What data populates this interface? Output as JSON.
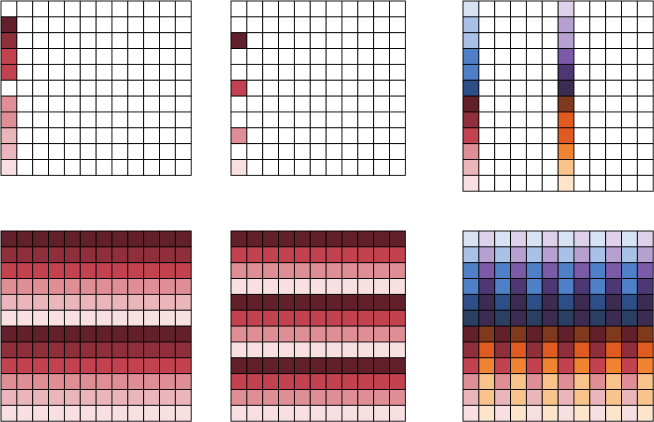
{
  "palettes": {
    "reds": [
      "#62212a",
      "#8f2f3b",
      "#c2434f",
      "#df8e95",
      "#eab6bb",
      "#f7dfe2"
    ],
    "blues": [
      "#d7e2f4",
      "#a9c1e6",
      "#4f7fc6",
      "#2c4f87",
      "#2b3f63"
    ],
    "purples": [
      "#ddd0ea",
      "#b6a0cf",
      "#7b5aa8",
      "#4d3874",
      "#3c2c52"
    ],
    "oranges": [
      "#7f3a1e",
      "#df5b22",
      "#f08433",
      "#f8c48c",
      "#fde5cb"
    ],
    "grid_line": "#000000",
    "empty_cell": "#ffffff"
  },
  "panels": [
    {
      "name": "panel-sparse-reds-every-row",
      "rows": 11,
      "cols": 12,
      "cells": [
        [
          1,
          0,
          "reds",
          0
        ],
        [
          2,
          0,
          "reds",
          1
        ],
        [
          3,
          0,
          "reds",
          2
        ],
        [
          4,
          0,
          "reds",
          2
        ],
        [
          6,
          0,
          "reds",
          3
        ],
        [
          7,
          0,
          "reds",
          3
        ],
        [
          8,
          0,
          "reds",
          4
        ],
        [
          9,
          0,
          "reds",
          4
        ],
        [
          10,
          0,
          "reds",
          5
        ]
      ]
    },
    {
      "name": "panel-sparse-reds-alternating",
      "rows": 11,
      "cols": 11,
      "cells": [
        [
          2,
          0,
          "reds",
          0
        ],
        [
          5,
          0,
          "reds",
          2
        ],
        [
          8,
          0,
          "reds",
          3
        ],
        [
          10,
          0,
          "reds",
          5
        ]
      ]
    },
    {
      "name": "panel-sparse-two-ramps",
      "rows": 12,
      "cols": 12,
      "cells": [
        [
          0,
          0,
          "blues",
          0
        ],
        [
          1,
          0,
          "blues",
          1
        ],
        [
          2,
          0,
          "blues",
          1
        ],
        [
          3,
          0,
          "blues",
          2
        ],
        [
          4,
          0,
          "blues",
          2
        ],
        [
          5,
          0,
          "blues",
          3
        ],
        [
          6,
          0,
          "reds",
          0
        ],
        [
          7,
          0,
          "reds",
          1
        ],
        [
          8,
          0,
          "reds",
          2
        ],
        [
          9,
          0,
          "reds",
          3
        ],
        [
          10,
          0,
          "reds",
          4
        ],
        [
          11,
          0,
          "reds",
          5
        ],
        [
          0,
          6,
          "purples",
          0
        ],
        [
          1,
          6,
          "purples",
          1
        ],
        [
          2,
          6,
          "purples",
          1
        ],
        [
          3,
          6,
          "purples",
          2
        ],
        [
          4,
          6,
          "purples",
          3
        ],
        [
          5,
          6,
          "purples",
          4
        ],
        [
          6,
          6,
          "oranges",
          0
        ],
        [
          7,
          6,
          "oranges",
          1
        ],
        [
          8,
          6,
          "oranges",
          1
        ],
        [
          9,
          6,
          "oranges",
          2
        ],
        [
          10,
          6,
          "oranges",
          3
        ],
        [
          11,
          6,
          "oranges",
          4
        ]
      ]
    },
    {
      "name": "panel-filled-reds-two-bands",
      "rows": 12,
      "cols": 12,
      "row_colors": [
        [
          "reds",
          0
        ],
        [
          "reds",
          1
        ],
        [
          "reds",
          2
        ],
        [
          "reds",
          3
        ],
        [
          "reds",
          4
        ],
        [
          "reds",
          5
        ],
        [
          "reds",
          0
        ],
        [
          "reds",
          1
        ],
        [
          "reds",
          2
        ],
        [
          "reds",
          3
        ],
        [
          "reds",
          4
        ],
        [
          "reds",
          5
        ]
      ]
    },
    {
      "name": "panel-filled-reds-three-bands",
      "rows": 12,
      "cols": 11,
      "row_colors": [
        [
          "reds",
          0
        ],
        [
          "reds",
          2
        ],
        [
          "reds",
          3
        ],
        [
          "reds",
          5
        ],
        [
          "reds",
          0
        ],
        [
          "reds",
          2
        ],
        [
          "reds",
          3
        ],
        [
          "reds",
          5
        ],
        [
          "reds",
          0
        ],
        [
          "reds",
          2
        ],
        [
          "reds",
          3
        ],
        [
          "reds",
          5
        ]
      ]
    },
    {
      "name": "panel-filled-two-ramps-interleaved",
      "rows": 12,
      "cols": 12,
      "row_pairs": [
        [
          [
            "blues",
            0
          ],
          [
            "purples",
            0
          ]
        ],
        [
          [
            "blues",
            1
          ],
          [
            "purples",
            1
          ]
        ],
        [
          [
            "blues",
            2
          ],
          [
            "purples",
            2
          ]
        ],
        [
          [
            "blues",
            2
          ],
          [
            "purples",
            3
          ]
        ],
        [
          [
            "blues",
            3
          ],
          [
            "purples",
            4
          ]
        ],
        [
          [
            "blues",
            4
          ],
          [
            "purples",
            4
          ]
        ],
        [
          [
            "reds",
            0
          ],
          [
            "oranges",
            0
          ]
        ],
        [
          [
            "reds",
            1
          ],
          [
            "oranges",
            1
          ]
        ],
        [
          [
            "reds",
            2
          ],
          [
            "oranges",
            2
          ]
        ],
        [
          [
            "reds",
            3
          ],
          [
            "oranges",
            3
          ]
        ],
        [
          [
            "reds",
            4
          ],
          [
            "oranges",
            3
          ]
        ],
        [
          [
            "reds",
            5
          ],
          [
            "oranges",
            4
          ]
        ]
      ]
    }
  ]
}
